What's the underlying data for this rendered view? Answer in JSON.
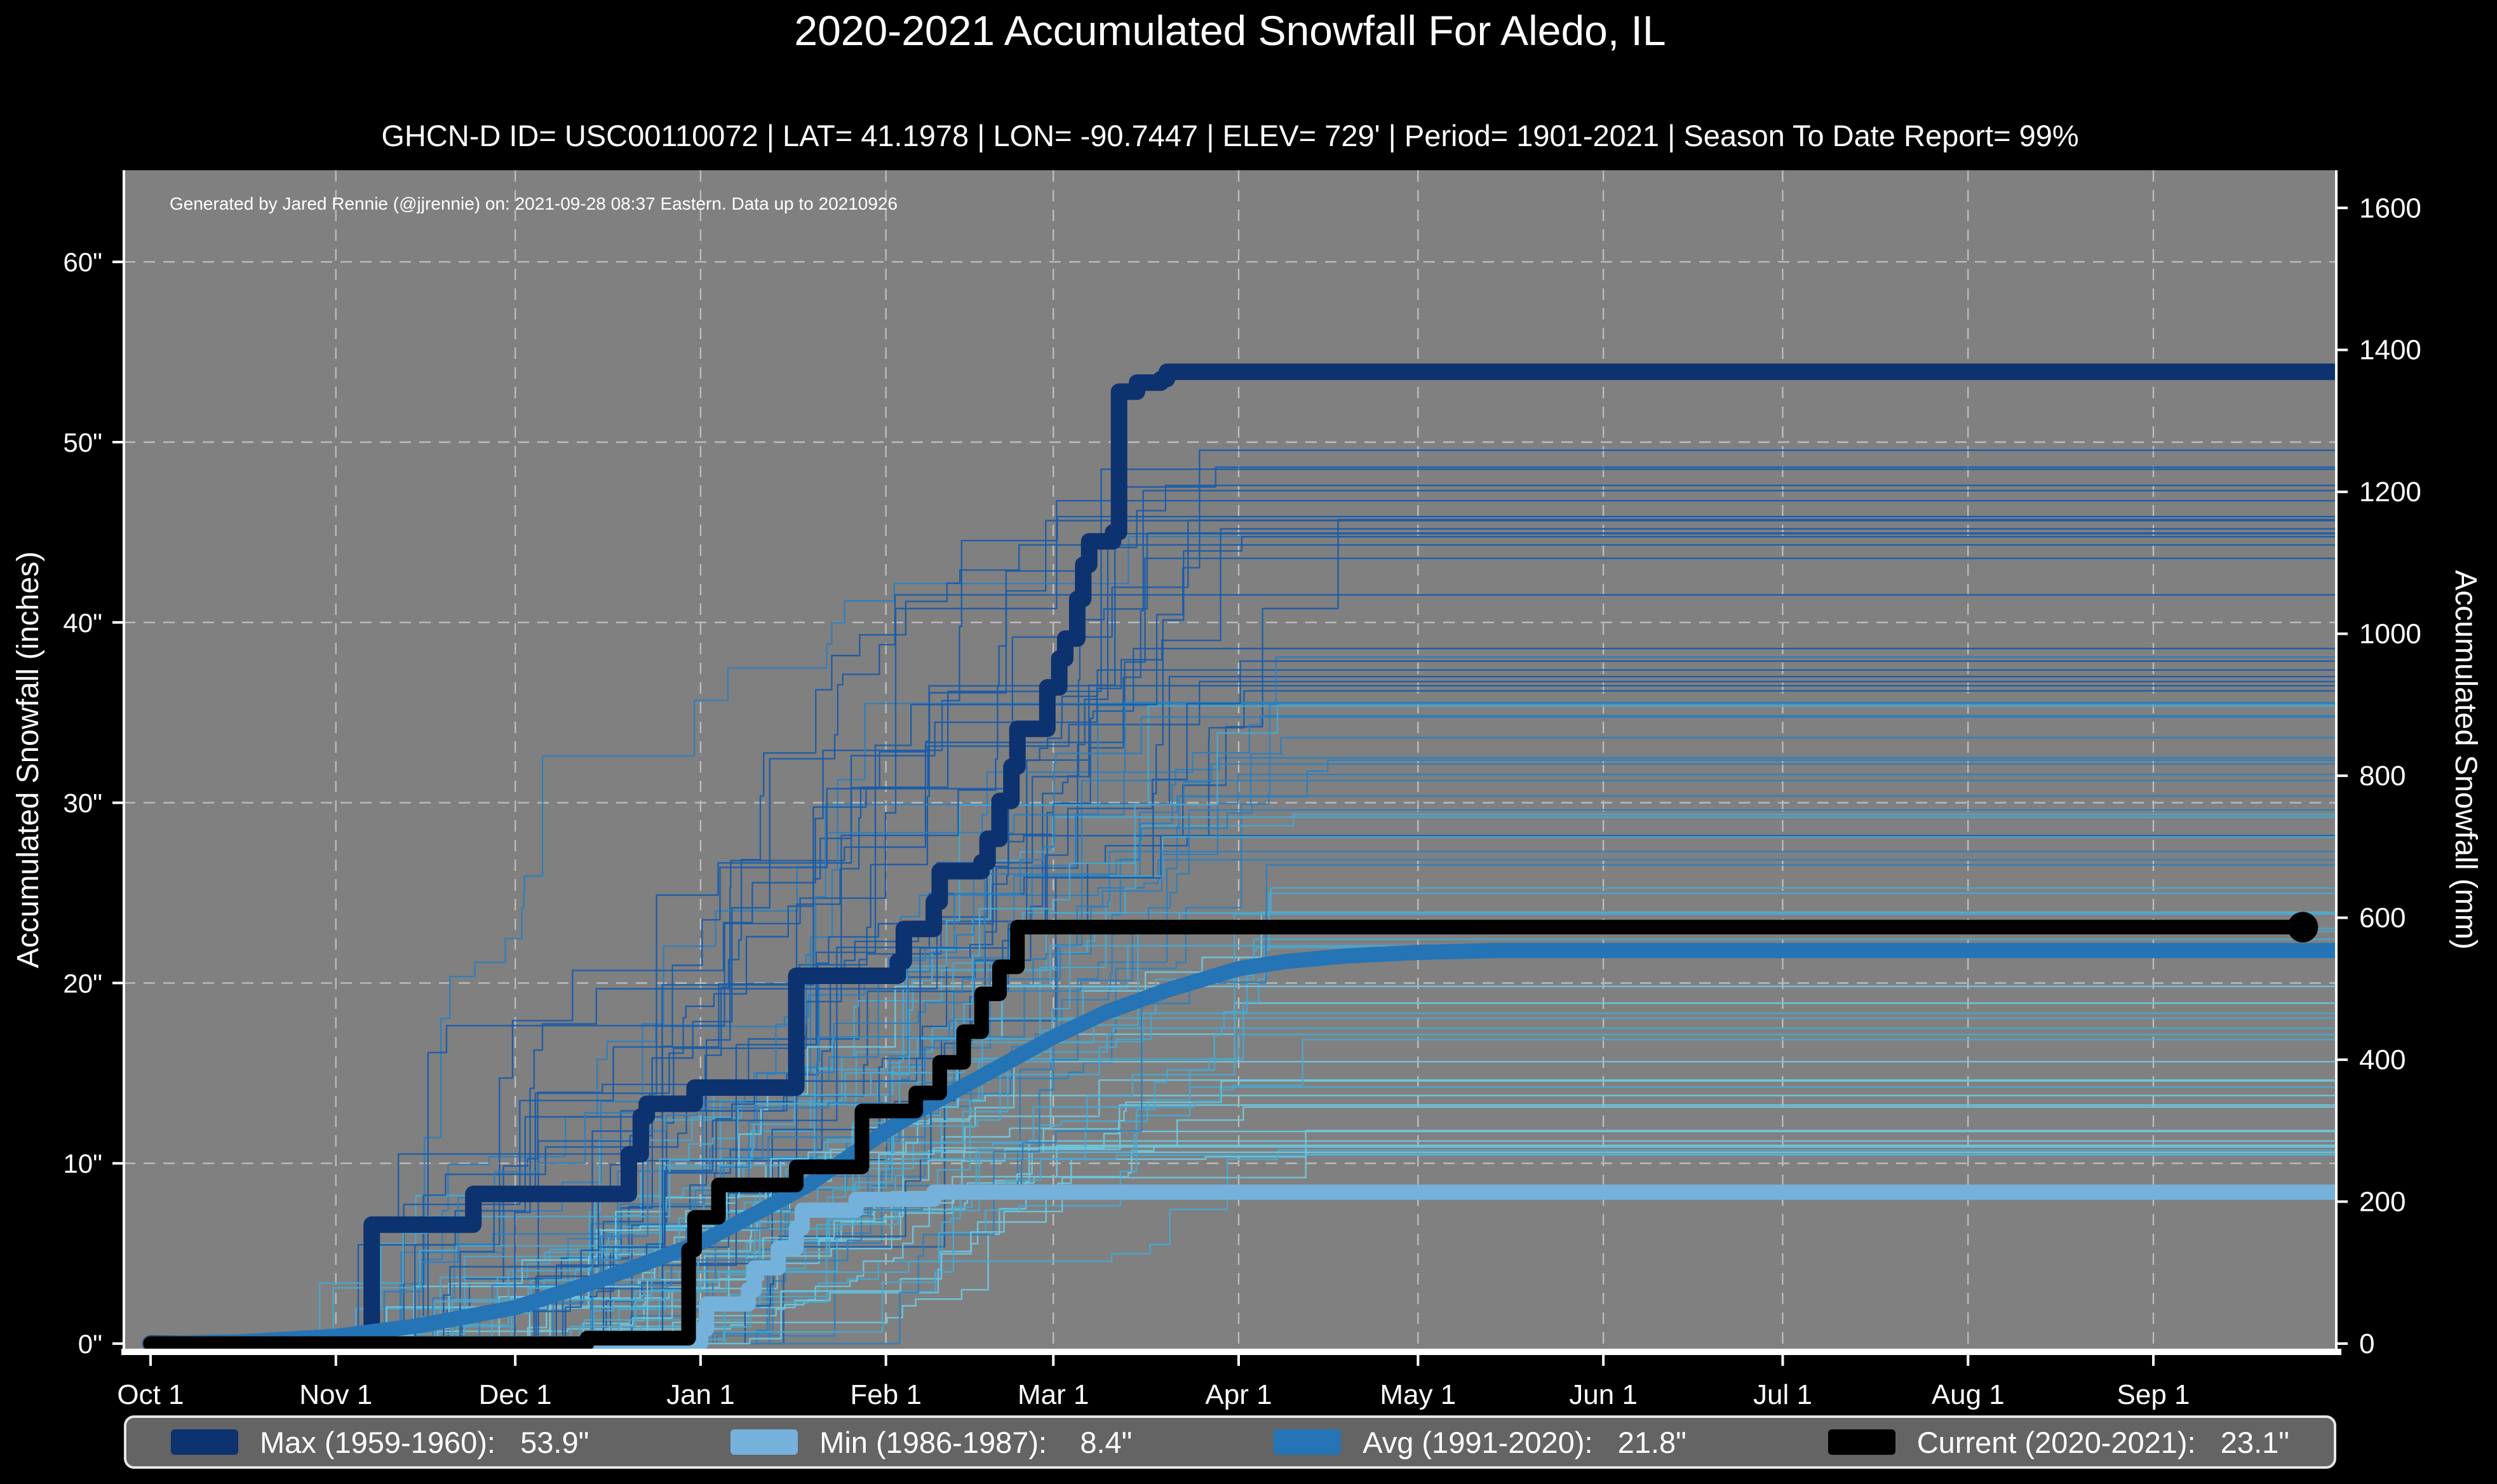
{
  "page": {
    "title": "2020-2021 Accumulated Snowfall For Aledo, IL",
    "subtitle": "GHCN-D ID= USC00110072 | LAT= 41.1978 | LON= -90.7447 | ELEV= 729' | Period= 1901-2021 | Season To Date Report= 99%",
    "background": "#000000"
  },
  "annotation": "Generated by Jared Rennie (@jjrennie) on: 2021-09-28 08:37 Eastern. Data up to 20210926",
  "axes": {
    "left_label": "Accumulated Snowfall (inches)",
    "right_label": "Accumulated Snowfall (mm)",
    "x_tick_labels": [
      "Oct 1",
      "Nov 1",
      "Dec 1",
      "Jan 1",
      "Feb 1",
      "Mar 1",
      "Apr 1",
      "May 1",
      "Jun 1",
      "Jul 1",
      "Aug 1",
      "Sep 1"
    ],
    "x_tick_days": [
      0,
      31,
      61,
      92,
      123,
      151,
      182,
      212,
      243,
      273,
      304,
      335
    ],
    "left_tick_labels": [
      "0\"",
      "10\"",
      "20\"",
      "30\"",
      "40\"",
      "50\"",
      "60\""
    ],
    "left_tick_values": [
      0,
      10,
      20,
      30,
      40,
      50,
      60
    ],
    "right_tick_labels": [
      "0",
      "200",
      "400",
      "600",
      "800",
      "1000",
      "1200",
      "1400",
      "1600"
    ],
    "right_tick_values_mm": [
      0,
      200,
      400,
      600,
      800,
      1000,
      1200,
      1400,
      1600
    ]
  },
  "colors": {
    "plot_background": "#808080",
    "grid": "#bcbcbc",
    "spine": "#ffffff",
    "text": "#ffffff",
    "max": "#0d3270",
    "min": "#74b2dc",
    "avg": "#2474b6",
    "current": "#000000",
    "ensemble": [
      "#6ec6dc",
      "#49a8cf",
      "#2e7ebc",
      "#1a5ca6"
    ],
    "legend_background": "#646464"
  },
  "chart_data": {
    "type": "line",
    "title": "2020-2021 Accumulated Snowfall For Aledo, IL",
    "x_unit": "days since Oct 1",
    "x_range_days": [
      0,
      366
    ],
    "ylim_inches": [
      0,
      65
    ],
    "ylim_mm": [
      0,
      1600
    ],
    "grid": "dashed",
    "legend_position": "bottom",
    "series": [
      {
        "name": "Max (1959-1960)",
        "total": "53.9\"",
        "color": "#0d3270",
        "style": "step",
        "stroke_width": 26,
        "points": [
          [
            0,
            0
          ],
          [
            36,
            0
          ],
          [
            37,
            6.6
          ],
          [
            53,
            6.6
          ],
          [
            54,
            8.3
          ],
          [
            78,
            8.3
          ],
          [
            80,
            10.5
          ],
          [
            82,
            12.6
          ],
          [
            83,
            13.3
          ],
          [
            90,
            13.3
          ],
          [
            91,
            14.2
          ],
          [
            106,
            14.2
          ],
          [
            108,
            20.4
          ],
          [
            124,
            20.4
          ],
          [
            125,
            21.2
          ],
          [
            126,
            23.0
          ],
          [
            129,
            23.0
          ],
          [
            131,
            24.5
          ],
          [
            132,
            26.2
          ],
          [
            138,
            26.2
          ],
          [
            139,
            26.7
          ],
          [
            140,
            28.0
          ],
          [
            142,
            30.1
          ],
          [
            144,
            32.0
          ],
          [
            145,
            34.1
          ],
          [
            149,
            34.1
          ],
          [
            150,
            36.4
          ],
          [
            152,
            38.0
          ],
          [
            153,
            39.1
          ],
          [
            155,
            41.3
          ],
          [
            156,
            43.2
          ],
          [
            157,
            44.5
          ],
          [
            160,
            44.5
          ],
          [
            161,
            45.0
          ],
          [
            162,
            52.8
          ],
          [
            165,
            53.3
          ],
          [
            169,
            53.5
          ],
          [
            170,
            53.9
          ],
          [
            366,
            53.9
          ]
        ]
      },
      {
        "name": "Min (1986-1987)",
        "total": "8.4\"",
        "color": "#74b2dc",
        "style": "step",
        "stroke_width": 24,
        "points": [
          [
            0,
            0
          ],
          [
            91,
            0
          ],
          [
            92,
            0.8
          ],
          [
            93,
            2.2
          ],
          [
            99,
            2.2
          ],
          [
            100,
            3.0
          ],
          [
            101,
            4.2
          ],
          [
            104,
            4.2
          ],
          [
            105,
            5.3
          ],
          [
            107,
            5.3
          ],
          [
            108,
            6.4
          ],
          [
            109,
            7.4
          ],
          [
            117,
            7.4
          ],
          [
            118,
            8.0
          ],
          [
            130,
            8.0
          ],
          [
            131,
            8.4
          ],
          [
            366,
            8.4
          ]
        ]
      },
      {
        "name": "Avg (1991-2020)",
        "total": "21.8\"",
        "color": "#2474b6",
        "style": "smooth",
        "stroke_width": 24,
        "points": [
          [
            0,
            0
          ],
          [
            15,
            0.1
          ],
          [
            31,
            0.4
          ],
          [
            45,
            1.0
          ],
          [
            61,
            2.0
          ],
          [
            75,
            3.5
          ],
          [
            92,
            5.6
          ],
          [
            100,
            7.0
          ],
          [
            110,
            8.8
          ],
          [
            123,
            11.8
          ],
          [
            130,
            13.2
          ],
          [
            140,
            15.0
          ],
          [
            151,
            17.0
          ],
          [
            160,
            18.4
          ],
          [
            170,
            19.6
          ],
          [
            182,
            20.8
          ],
          [
            190,
            21.2
          ],
          [
            200,
            21.5
          ],
          [
            212,
            21.7
          ],
          [
            225,
            21.8
          ],
          [
            366,
            21.8
          ]
        ]
      },
      {
        "name": "Current (2020-2021)",
        "total": "23.1\"",
        "color": "#000000",
        "style": "step",
        "stroke_width": 23,
        "end_marker_day": 360,
        "end_marker_value": 23.1,
        "points": [
          [
            0,
            0
          ],
          [
            72,
            0
          ],
          [
            73,
            0.3
          ],
          [
            89,
            0.3
          ],
          [
            90,
            5.2
          ],
          [
            91,
            7.0
          ],
          [
            94,
            7.0
          ],
          [
            95,
            8.8
          ],
          [
            107,
            8.8
          ],
          [
            108,
            9.8
          ],
          [
            118,
            9.8
          ],
          [
            119,
            12.9
          ],
          [
            127,
            12.9
          ],
          [
            128,
            13.9
          ],
          [
            131,
            13.9
          ],
          [
            132,
            15.6
          ],
          [
            135,
            15.6
          ],
          [
            136,
            17.3
          ],
          [
            138,
            17.3
          ],
          [
            139,
            19.4
          ],
          [
            141,
            19.4
          ],
          [
            142,
            20.9
          ],
          [
            144,
            20.9
          ],
          [
            145,
            23.1
          ],
          [
            360,
            23.1
          ]
        ]
      }
    ],
    "ensemble": {
      "description": "thin background step lines, one per season 1901-2021, colored light (low totals) to dark blue (high totals)",
      "count": 82,
      "seed": 13,
      "final_total_range_inches": [
        9,
        50
      ],
      "stroke_width": 2.4
    }
  },
  "legend": {
    "entries": [
      {
        "label": "Max (1959-1960):   53.9\"",
        "color": "#0d3270"
      },
      {
        "label": "Min (1986-1987):    8.4\"",
        "color": "#74b2dc"
      },
      {
        "label": "Avg (1991-2020):   21.8\"",
        "color": "#2474b6"
      },
      {
        "label": "Current (2020-2021):   23.1\"",
        "color": "#000000"
      }
    ]
  }
}
